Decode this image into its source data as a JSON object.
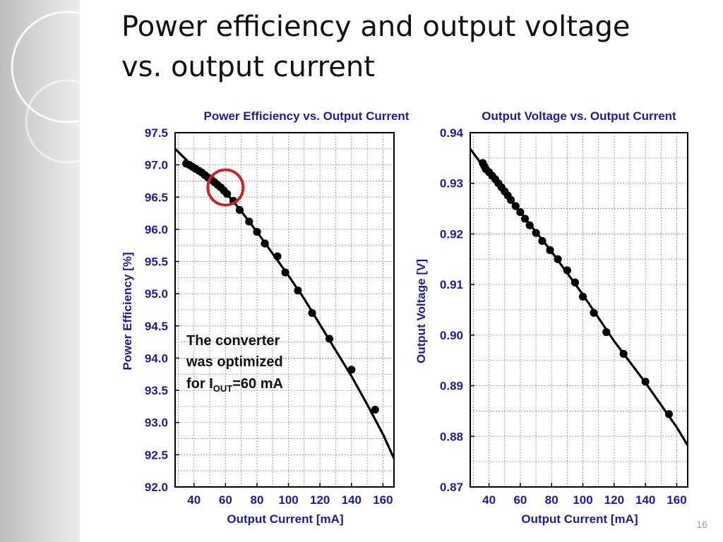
{
  "slide": {
    "title_line1": "Power efficiency and output voltage",
    "title_line2": "vs. output current",
    "page_number": "16",
    "annotation_line1": "The converter",
    "annotation_line2": "was optimized",
    "annotation_line3_prefix": "for I",
    "annotation_line3_sub": "OUT",
    "annotation_line3_suffix": "=60 mA",
    "highlight_color": "#c0282a"
  },
  "chart_data": [
    {
      "type": "scatter",
      "title": "Power Efficiency vs. Output Current",
      "xlabel": "Output Current [mA]",
      "ylabel": "Power Efficiency [%]",
      "xlim": [
        28,
        167
      ],
      "ylim": [
        92.0,
        97.5
      ],
      "x_ticks": [
        40,
        60,
        80,
        100,
        120,
        140,
        160
      ],
      "y_ticks": [
        92.0,
        92.5,
        93.0,
        93.5,
        94.0,
        94.5,
        95.0,
        95.5,
        96.0,
        96.5,
        97.0,
        97.5
      ],
      "y_tick_labels": [
        "92.0",
        "92.5",
        "93.0",
        "93.5",
        "94.0",
        "94.5",
        "95.0",
        "95.5",
        "96.0",
        "96.5",
        "97.0",
        "97.5"
      ],
      "grid": true,
      "series": [
        {
          "markers": [
            [
              35,
              97.02
            ],
            [
              37,
              97.0
            ],
            [
              39,
              96.97
            ],
            [
              41,
              96.94
            ],
            [
              43,
              96.91
            ],
            [
              45,
              96.88
            ],
            [
              47,
              96.84
            ],
            [
              49,
              96.8
            ],
            [
              51,
              96.77
            ],
            [
              53,
              96.73
            ],
            [
              55,
              96.69
            ],
            [
              57,
              96.65
            ],
            [
              59,
              96.6
            ],
            [
              61,
              96.55
            ],
            [
              65,
              96.44
            ],
            [
              69,
              96.3
            ],
            [
              75,
              96.12
            ],
            [
              80,
              95.96
            ],
            [
              85,
              95.78
            ],
            [
              93,
              95.58
            ],
            [
              98,
              95.33
            ],
            [
              106,
              95.05
            ],
            [
              115,
              94.7
            ],
            [
              126,
              94.3
            ],
            [
              140,
              93.82
            ],
            [
              155,
              93.2
            ]
          ],
          "line": [
            [
              28,
              97.25
            ],
            [
              40,
              96.96
            ],
            [
              50,
              96.78
            ],
            [
              60,
              96.58
            ],
            [
              70,
              96.28
            ],
            [
              80,
              95.96
            ],
            [
              90,
              95.62
            ],
            [
              100,
              95.28
            ],
            [
              110,
              94.92
            ],
            [
              120,
              94.52
            ],
            [
              130,
              94.12
            ],
            [
              140,
              93.72
            ],
            [
              150,
              93.28
            ],
            [
              160,
              92.82
            ],
            [
              167,
              92.44
            ]
          ]
        }
      ],
      "highlight_x": 60,
      "highlight_y": 96.65
    },
    {
      "type": "scatter",
      "title": "Output Voltage vs. Output Current",
      "xlabel": "Output Current [mA]",
      "ylabel": "Output Voltage [V]",
      "xlim": [
        28,
        167
      ],
      "ylim": [
        0.87,
        0.94
      ],
      "x_ticks": [
        40,
        60,
        80,
        100,
        120,
        140,
        160
      ],
      "y_ticks": [
        0.87,
        0.88,
        0.89,
        0.9,
        0.91,
        0.92,
        0.93,
        0.94
      ],
      "y_tick_labels": [
        "0.87",
        "0.88",
        "0.89",
        "0.90",
        "0.91",
        "0.92",
        "0.93",
        "0.94"
      ],
      "grid": true,
      "series": [
        {
          "markers": [
            [
              36,
              0.934
            ],
            [
              37,
              0.9334
            ],
            [
              38,
              0.9328
            ],
            [
              40,
              0.9322
            ],
            [
              42,
              0.9315
            ],
            [
              44,
              0.9308
            ],
            [
              46,
              0.93
            ],
            [
              48,
              0.9292
            ],
            [
              50,
              0.9284
            ],
            [
              52,
              0.9276
            ],
            [
              54,
              0.9267
            ],
            [
              57,
              0.9255
            ],
            [
              60,
              0.9243
            ],
            [
              63,
              0.923
            ],
            [
              66,
              0.9217
            ],
            [
              70,
              0.9202
            ],
            [
              74,
              0.9186
            ],
            [
              79,
              0.9168
            ],
            [
              84,
              0.915
            ],
            [
              90,
              0.9128
            ],
            [
              95,
              0.9104
            ],
            [
              100,
              0.9076
            ],
            [
              107,
              0.9044
            ],
            [
              115,
              0.9006
            ],
            [
              126,
              0.8963
            ],
            [
              140,
              0.8908
            ],
            [
              155,
              0.8844
            ]
          ],
          "line": [
            [
              28,
              0.9368
            ],
            [
              40,
              0.9318
            ],
            [
              60,
              0.9243
            ],
            [
              80,
              0.9165
            ],
            [
              100,
              0.908
            ],
            [
              120,
              0.8988
            ],
            [
              140,
              0.8906
            ],
            [
              160,
              0.8818
            ],
            [
              167,
              0.8782
            ]
          ]
        }
      ]
    }
  ]
}
